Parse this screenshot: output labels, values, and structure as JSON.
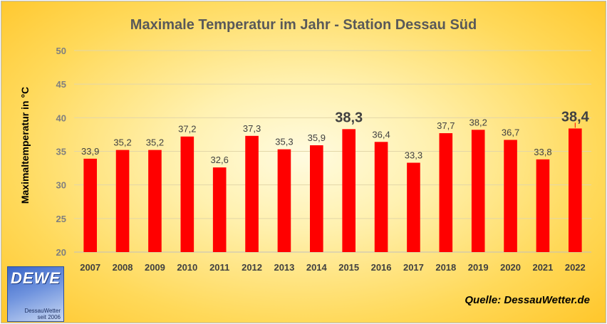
{
  "chart_data": {
    "type": "bar",
    "title": "Maximale Temperatur im Jahr - Station Dessau Süd",
    "ylabel": "Maximaltemperatur in °C",
    "xlabel": "",
    "categories": [
      "2007",
      "2008",
      "2009",
      "2010",
      "2011",
      "2012",
      "2013",
      "2014",
      "2015",
      "2016",
      "2017",
      "2018",
      "2019",
      "2020",
      "2021",
      "2022"
    ],
    "values": [
      33.9,
      35.2,
      35.2,
      37.2,
      32.6,
      37.3,
      35.3,
      35.9,
      38.3,
      36.4,
      33.3,
      37.7,
      38.2,
      36.7,
      33.8,
      38.4
    ],
    "data_labels": [
      "33,9",
      "35,2",
      "35,2",
      "37,2",
      "32,6",
      "37,3",
      "35,3",
      "35,9",
      "38,3",
      "36,4",
      "33,3",
      "37,7",
      "38,2",
      "36,7",
      "33,8",
      "38,4"
    ],
    "highlight": {
      "2015": "#000000",
      "2022": "#ff0000"
    },
    "ylim": [
      20,
      50
    ],
    "yticks": [
      20,
      25,
      30,
      35,
      40,
      45,
      50
    ],
    "bar_color": "#ff0000",
    "grid": true,
    "legend": "none"
  },
  "logo": {
    "text": "DEWE",
    "sub1": "DessauWetter",
    "sub2": "seit 2006"
  },
  "source": "Quelle: DessauWetter.de"
}
